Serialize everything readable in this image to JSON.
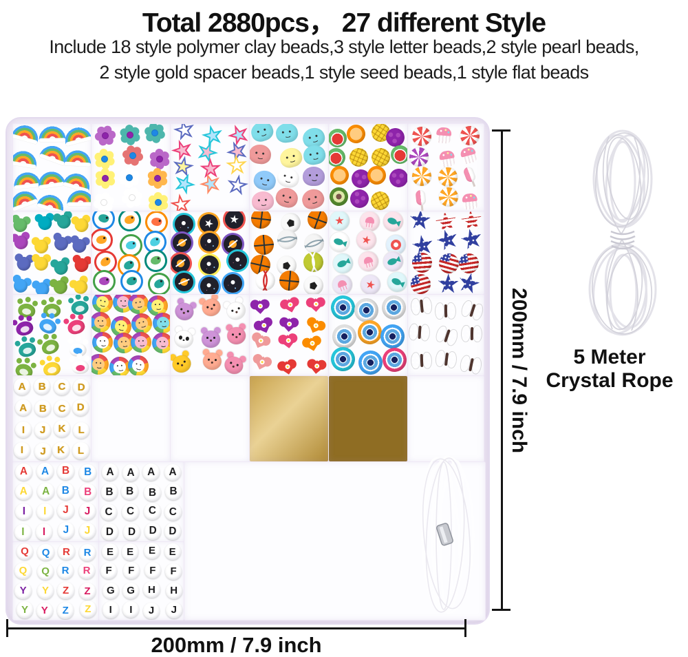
{
  "header": {
    "title": "Total 2880pcs， 27 different Style",
    "description_line1": "Include 18 style polymer clay beads,3 style letter beads,2 style pearl beads,",
    "description_line2": "2 style gold spacer beads,1 style seed beads,1 style flat beads"
  },
  "dimensions": {
    "height_label": "200mm / 7.9 inch",
    "width_label": "200mm / 7.9 inch"
  },
  "rope": {
    "label_line1": "5 Meter",
    "label_line2": "Crystal Rope"
  },
  "box": {
    "compartments": [
      {
        "id": "rainbow",
        "icon": "rainbow-bead-icon",
        "kind": "rainbow",
        "count": 12
      },
      {
        "id": "flower",
        "icon": "flower-bead-icon",
        "kind": "flower",
        "count": 12
      },
      {
        "id": "star",
        "icon": "star-bead-icon",
        "kind": "star",
        "count": 13
      },
      {
        "id": "cloud",
        "icon": "smiley-cloud-bead-icon",
        "kind": "cloud",
        "count": 12
      },
      {
        "id": "fruit",
        "icon": "fruit-bead-icon",
        "kind": "fruit",
        "count": 15
      },
      {
        "id": "candy",
        "icon": "candy-cake-bead-icon",
        "kind": "candy",
        "count": 12
      },
      {
        "id": "mickey",
        "icon": "mouse-head-bead-icon",
        "kind": "mickey",
        "count": 16
      },
      {
        "id": "dino",
        "icon": "dinosaur-bead-icon",
        "kind": "dino",
        "count": 12
      },
      {
        "id": "space",
        "icon": "space-bead-icon",
        "kind": "space",
        "count": 12
      },
      {
        "id": "sport",
        "icon": "sports-ball-bead-icon",
        "kind": "sport",
        "count": 12
      },
      {
        "id": "ocean",
        "icon": "ocean-beach-bead-icon",
        "kind": "ocean",
        "count": 12
      },
      {
        "id": "flag",
        "icon": "usa-flag-bead-icon",
        "kind": "flag",
        "count": 12
      },
      {
        "id": "paw",
        "icon": "paw-print-bead-icon",
        "kind": "paw",
        "count": 12
      },
      {
        "id": "smileyflower",
        "icon": "smiley-flower-bead-icon",
        "kind": "smileyflower",
        "count": 15
      },
      {
        "id": "animal",
        "icon": "animal-face-bead-icon",
        "kind": "animal",
        "count": 9
      },
      {
        "id": "heart",
        "icon": "heart-flower-bead-icon",
        "kind": "heart",
        "count": 12
      },
      {
        "id": "evileye",
        "icon": "evil-eye-bead-icon",
        "kind": "evileye",
        "count": 9
      },
      {
        "id": "butterfly",
        "icon": "butterfly-bead-icon",
        "kind": "butterfly",
        "count": 9
      },
      {
        "id": "letters-gold",
        "icon": "gold-letter-bead-icon",
        "kind": "letters",
        "scheme": "gold",
        "grid": [
          "ABCD",
          "ABCD",
          "IJKL",
          "IJKL"
        ]
      },
      {
        "id": "pearl-small",
        "icon": "small-pearl-bead-icon",
        "kind": "pearl-s"
      },
      {
        "id": "pearl-large",
        "icon": "large-pearl-bead-icon",
        "kind": "pearl-l"
      },
      {
        "id": "gold-flat",
        "icon": "gold-spacer-bead-icon",
        "kind": "goldflat"
      },
      {
        "id": "gold-round",
        "icon": "gold-round-bead-icon",
        "kind": "goldround"
      },
      {
        "id": "seed",
        "icon": "seed-bead-icon",
        "kind": "seed"
      },
      {
        "id": "letters-color-top",
        "icon": "color-letter-bead-icon",
        "kind": "letters",
        "scheme": "color",
        "grid": [
          "AABB",
          "AABB",
          "IIJJ",
          "IIJJ"
        ]
      },
      {
        "id": "letters-color-bottom",
        "icon": "color-letter-bead-icon",
        "kind": "letters",
        "scheme": "color",
        "grid": [
          "QQRR",
          "QQRR",
          "YYZZ",
          "YYZZ"
        ]
      },
      {
        "id": "letters-black-top",
        "icon": "black-letter-bead-icon",
        "kind": "letters",
        "scheme": "black",
        "grid": [
          "AAAA",
          "BBBB",
          "CCCC",
          "DDDD"
        ]
      },
      {
        "id": "letters-black-bottom",
        "icon": "black-letter-bead-icon",
        "kind": "letters",
        "scheme": "black",
        "grid": [
          "EEEE",
          "FFFF",
          "GGHH",
          "IIJJ"
        ]
      },
      {
        "id": "heishi",
        "icon": "flat-clay-bead-icon",
        "kind": "heishi"
      }
    ],
    "palettes": {
      "accent_black": "#141414",
      "box_shell": "#ece5f4",
      "letter_colors": [
        "#e53935",
        "#ec407a",
        "#fb8c00",
        "#fdd835",
        "#43a047",
        "#1e88e5",
        "#7b1fa2",
        "#d81b60",
        "#00acc1",
        "#7cb342"
      ],
      "gold_letter": "#d09a1e",
      "black_letter": "#1d1d1f",
      "bright": [
        "#e53935",
        "#fb8c00",
        "#fdd835",
        "#66bb6a",
        "#26a69a",
        "#42a5f5",
        "#5c6bc0",
        "#ab47bc",
        "#ec407a",
        "#ff7043",
        "#00acc1",
        "#7cb342"
      ],
      "pastel": [
        "#ffffff",
        "#f8bbd0",
        "#90caf9",
        "#ce93d8",
        "#ffcc80",
        "#fff59d",
        "#ef9a9a",
        "#b39ddb",
        "#80deea"
      ],
      "heishi": [
        "#e53935",
        "#fb8c00",
        "#fdd835",
        "#7cb342",
        "#26a69a",
        "#1e88e5",
        "#283593",
        "#ec407a",
        "#d81b60",
        "#ffffff",
        "#212121",
        "#f1d9a7",
        "#8d6e63",
        "#b39ddb",
        "#ff7043",
        "#aed581",
        "#4dd0e1",
        "#f8bbd0",
        "#ef9a9a",
        "#009688"
      ],
      "evil_eye_rings": [
        "#ec407a",
        "#66bb6a",
        "#ffa726",
        "#42a5f5",
        "#ef5350",
        "#e0e0e0",
        "#26c6da"
      ],
      "wing": [
        "#ff8a50",
        "#f06292",
        "#4dd0e1",
        "#ffb74d",
        "#e57373",
        "#ba68c8"
      ],
      "rainbow_bands": [
        "#ef5350",
        "#ffa726",
        "#ffee58",
        "#66bb6a",
        "#42a5f5",
        "#ab47bc"
      ],
      "gold": "#d4af37",
      "pearl": "#f6f2f8"
    }
  }
}
